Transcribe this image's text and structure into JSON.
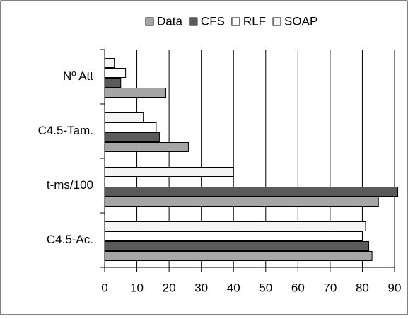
{
  "chart_data": {
    "type": "hbar",
    "categories": [
      "Nº Att",
      "C4.5-Tam.",
      "t-ms/100",
      "C4.5-Ac."
    ],
    "series": [
      {
        "name": "Data",
        "color": "#a6a6a6",
        "values": [
          19,
          26,
          85,
          83
        ]
      },
      {
        "name": "CFS",
        "color": "#5a5a5a",
        "values": [
          5,
          17,
          91,
          82
        ]
      },
      {
        "name": "RLF",
        "color": "#ffffff",
        "values": [
          6.5,
          16,
          null,
          80
        ]
      },
      {
        "name": "SOAP",
        "color": "#f4f4f4",
        "values": [
          3,
          12,
          40,
          81
        ]
      }
    ],
    "xlim": [
      0,
      90
    ],
    "xticks": [
      0,
      10,
      20,
      30,
      40,
      50,
      60,
      70,
      80,
      90
    ],
    "grid": true
  }
}
